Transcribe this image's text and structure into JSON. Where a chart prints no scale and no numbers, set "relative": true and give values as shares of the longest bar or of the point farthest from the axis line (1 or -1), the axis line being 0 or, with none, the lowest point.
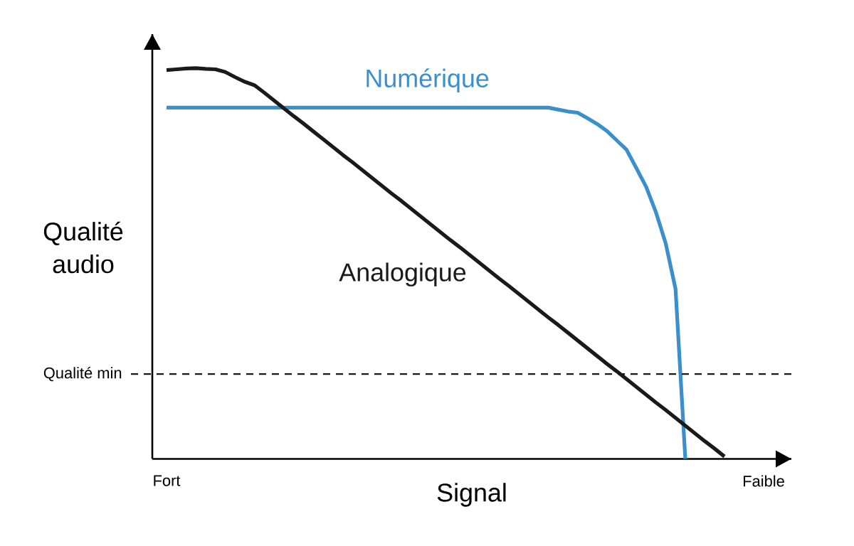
{
  "chart_data": {
    "type": "line",
    "relative": true,
    "xlabel": "Signal",
    "ylabel": "Qualité audio",
    "categories": [
      "Fort",
      null,
      null,
      null,
      null,
      null,
      null,
      null,
      null,
      null,
      null,
      null,
      null,
      null,
      null,
      null,
      null,
      null,
      null,
      null,
      null,
      null,
      null,
      null,
      null,
      null,
      null,
      null,
      null,
      null,
      null,
      null,
      null,
      null,
      null,
      null,
      null,
      null,
      null,
      null,
      null,
      null,
      null,
      null,
      null,
      null,
      null,
      null,
      null,
      null,
      null,
      null,
      null,
      null,
      null,
      null,
      null,
      null,
      null,
      null,
      null,
      "Faible"
    ],
    "grid": false,
    "legend": false,
    "ref_lines": [
      {
        "axis": "y",
        "value": 0.217,
        "label": "Qualité min",
        "color": "#1a1a1a",
        "line_style": "dashed"
      }
    ],
    "series": [
      {
        "name": "Numérique",
        "color": "#3b8fcb",
        "values": [
          0.899,
          0.899,
          0.899,
          0.899,
          0.899,
          0.899,
          0.899,
          0.899,
          0.899,
          0.899,
          0.899,
          0.899,
          0.899,
          0.899,
          0.899,
          0.899,
          0.899,
          0.899,
          0.899,
          0.899,
          0.899,
          0.899,
          0.899,
          0.899,
          0.899,
          0.899,
          0.899,
          0.899,
          0.899,
          0.899,
          0.899,
          0.899,
          0.899,
          0.899,
          0.899,
          0.899,
          0.899,
          0.899,
          0.899,
          0.899,
          0.894,
          0.889,
          0.886,
          0.872,
          0.857,
          0.839,
          0.815,
          0.791,
          0.744,
          0.696,
          0.631,
          0.551,
          0.435,
          0,
          null,
          null,
          null,
          null,
          null,
          null,
          null,
          null
        ]
      },
      {
        "name": "Analogique",
        "color": "#1a1a1a",
        "values": [
          0.995,
          0.997,
          0.999,
          1,
          0.998,
          0.997,
          0.99,
          0.977,
          0.965,
          0.956,
          0.937,
          0.917,
          0.897,
          0.877,
          0.858,
          0.838,
          0.818,
          0.798,
          0.778,
          0.759,
          0.739,
          0.719,
          0.699,
          0.679,
          0.66,
          0.64,
          0.62,
          0.6,
          0.58,
          0.56,
          0.541,
          0.521,
          0.501,
          0.481,
          0.461,
          0.442,
          0.422,
          0.402,
          0.382,
          0.362,
          0.343,
          0.323,
          0.303,
          0.283,
          0.263,
          0.243,
          0.224,
          0.204,
          0.184,
          0.164,
          0.144,
          0.125,
          0.105,
          0.085,
          0.065,
          0.045,
          0.026,
          0.006,
          null,
          null,
          null,
          null
        ]
      }
    ]
  }
}
